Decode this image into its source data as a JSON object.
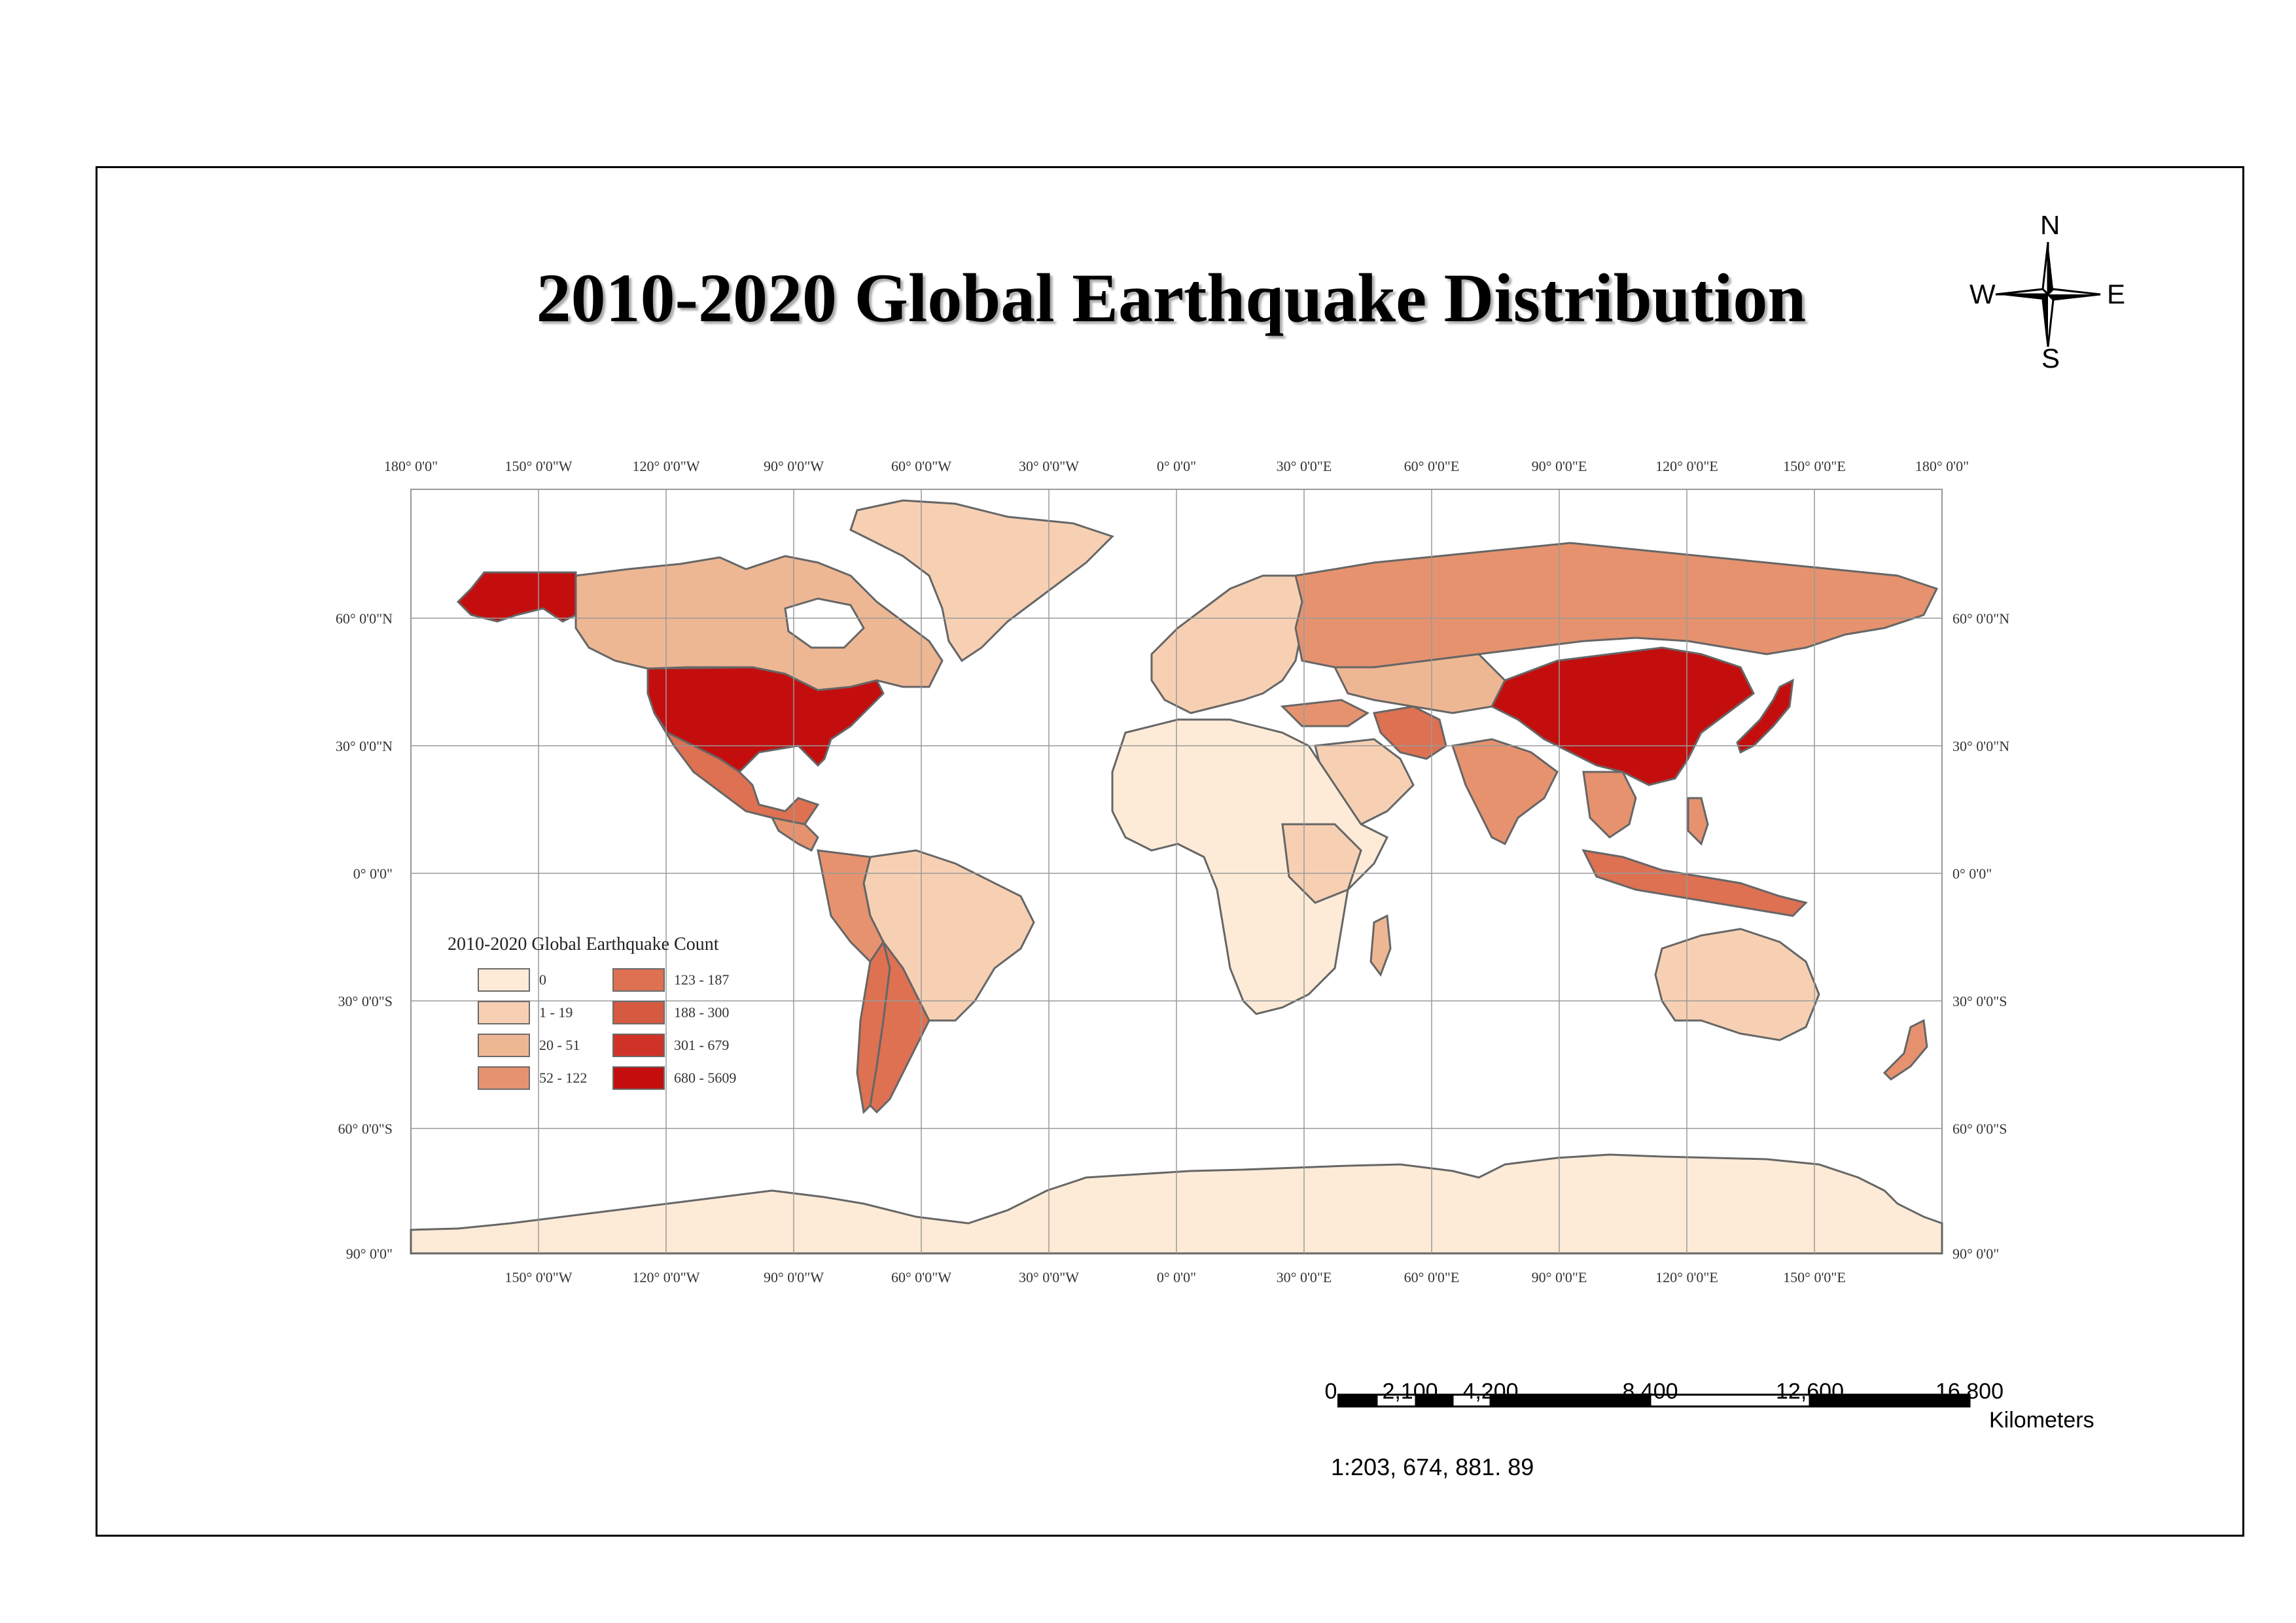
{
  "title": "2010-2020 Global Earthquake Distribution",
  "compass": {
    "n": "N",
    "s": "S",
    "e": "E",
    "w": "W"
  },
  "graticule": {
    "top_labels": [
      "180° 0'0\"",
      "150° 0'0\"W",
      "120° 0'0\"W",
      "90° 0'0\"W",
      "60° 0'0\"W",
      "30° 0'0\"W",
      "0° 0'0\"",
      "30° 0'0\"E",
      "60° 0'0\"E",
      "90° 0'0\"E",
      "120° 0'0\"E",
      "150° 0'0\"E",
      "180° 0'0\""
    ],
    "bottom_labels": [
      "150° 0'0\"W",
      "120° 0'0\"W",
      "90° 0'0\"W",
      "60° 0'0\"W",
      "30° 0'0\"W",
      "0° 0'0\"",
      "30° 0'0\"E",
      "60° 0'0\"E",
      "90° 0'0\"E",
      "120° 0'0\"E",
      "150° 0'0\"E"
    ],
    "left_labels": [
      "60° 0'0\"N",
      "30° 0'0\"N",
      "0° 0'0\"",
      "30° 0'0\"S",
      "60° 0'0\"S",
      "90° 0'0\""
    ],
    "right_labels": [
      "60° 0'0\"N",
      "30° 0'0\"N",
      "0° 0'0\"",
      "30° 0'0\"S",
      "60° 0'0\"S",
      "90° 0'0\""
    ]
  },
  "legend": {
    "title": "2010-2020 Global Earthquake Count",
    "classes": [
      {
        "label": "0",
        "color": "#fdebd7"
      },
      {
        "label": "1 - 19",
        "color": "#f7d0b3"
      },
      {
        "label": "20 - 51",
        "color": "#eeb794"
      },
      {
        "label": "52 - 122",
        "color": "#e6926f"
      },
      {
        "label": "123 - 187",
        "color": "#dd7152"
      },
      {
        "label": "188 - 300",
        "color": "#d65a40"
      },
      {
        "label": "301 - 679",
        "color": "#cf3328"
      },
      {
        "label": "680 - 5609",
        "color": "#c40e0e"
      }
    ]
  },
  "scale_bar": {
    "labels": [
      "0",
      "2,100",
      "4,200",
      "8,400",
      "12,600",
      "16,800"
    ],
    "unit": "Kilometers",
    "ratio": "1:203, 674, 881. 89"
  }
}
